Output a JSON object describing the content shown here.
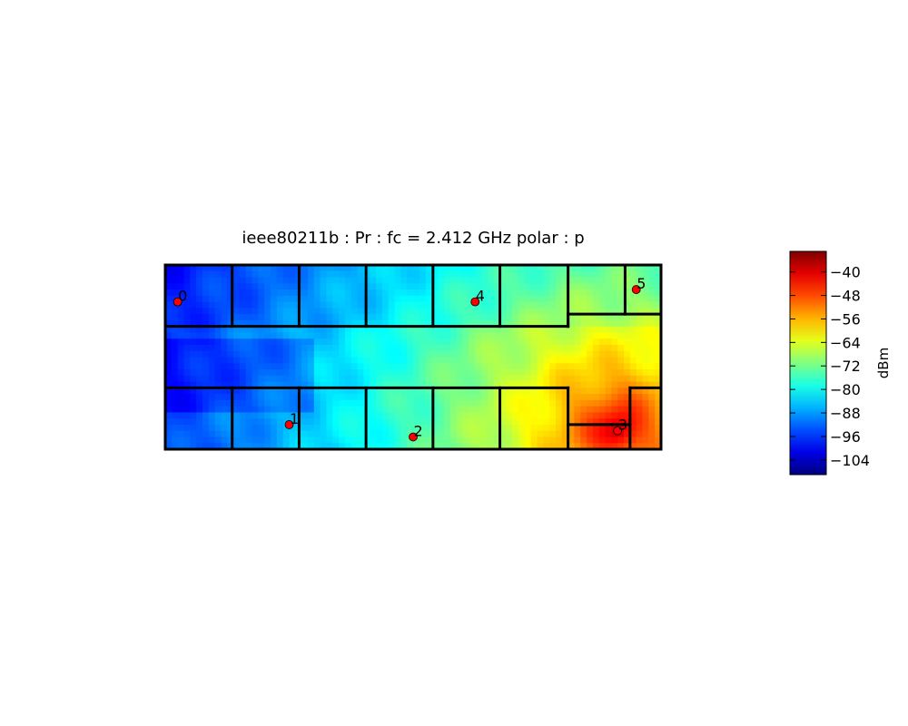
{
  "chart_data": {
    "type": "heatmap",
    "title": "ieee80211b : Pr :  fc = 2.412 GHz polar : p",
    "colorbar": {
      "label": "dBm",
      "vmin": -109,
      "vmax": -33,
      "colormap": "jet",
      "ticks": [
        -40,
        -48,
        -56,
        -64,
        -72,
        -80,
        -88,
        -96,
        -104
      ],
      "tick_labels": [
        "−40",
        "−48",
        "−56",
        "−64",
        "−72",
        "−80",
        "−88",
        "−96",
        "−104"
      ]
    },
    "x_extent": [
      0,
      40
    ],
    "y_extent": [
      0,
      15
    ],
    "access_points": [
      {
        "label": "0",
        "x": 1,
        "y": 12
      },
      {
        "label": "1",
        "x": 10,
        "y": 2
      },
      {
        "label": "2",
        "x": 20,
        "y": 1
      },
      {
        "label": "3",
        "x": 36.5,
        "y": 1.5
      },
      {
        "label": "4",
        "x": 25,
        "y": 12
      },
      {
        "label": "5",
        "x": 38,
        "y": 13
      }
    ],
    "transmitter": {
      "x": 36.5,
      "y": 1.5,
      "peak_dbm": -35
    },
    "walls": [
      [
        [
          0,
          0
        ],
        [
          40,
          0
        ]
      ],
      [
        [
          40,
          0
        ],
        [
          40,
          15
        ]
      ],
      [
        [
          40,
          15
        ],
        [
          0,
          15
        ]
      ],
      [
        [
          0,
          15
        ],
        [
          0,
          0
        ]
      ],
      [
        [
          0,
          10
        ],
        [
          32.5,
          10
        ]
      ],
      [
        [
          32.5,
          10
        ],
        [
          32.5,
          11
        ]
      ],
      [
        [
          32.5,
          11
        ],
        [
          40,
          11
        ]
      ],
      [
        [
          0,
          5
        ],
        [
          32.5,
          5
        ]
      ],
      [
        [
          37.5,
          5
        ],
        [
          40,
          5
        ]
      ],
      [
        [
          32.5,
          2
        ],
        [
          37.5,
          2
        ]
      ],
      [
        [
          37.5,
          0
        ],
        [
          37.5,
          5
        ]
      ],
      [
        [
          5.4,
          10
        ],
        [
          5.4,
          15
        ]
      ],
      [
        [
          10.8,
          10
        ],
        [
          10.8,
          15
        ]
      ],
      [
        [
          16.2,
          10
        ],
        [
          16.2,
          15
        ]
      ],
      [
        [
          21.6,
          10
        ],
        [
          21.6,
          15
        ]
      ],
      [
        [
          27,
          10
        ],
        [
          27,
          15
        ]
      ],
      [
        [
          32.5,
          10
        ],
        [
          32.5,
          15
        ]
      ],
      [
        [
          37.1,
          11
        ],
        [
          37.1,
          15
        ]
      ],
      [
        [
          5.4,
          0
        ],
        [
          5.4,
          5
        ]
      ],
      [
        [
          10.8,
          0
        ],
        [
          10.8,
          5
        ]
      ],
      [
        [
          16.2,
          0
        ],
        [
          16.2,
          5
        ]
      ],
      [
        [
          21.6,
          0
        ],
        [
          21.6,
          5
        ]
      ],
      [
        [
          27,
          0
        ],
        [
          27,
          5
        ]
      ],
      [
        [
          32.5,
          0
        ],
        [
          32.5,
          5
        ]
      ]
    ]
  }
}
